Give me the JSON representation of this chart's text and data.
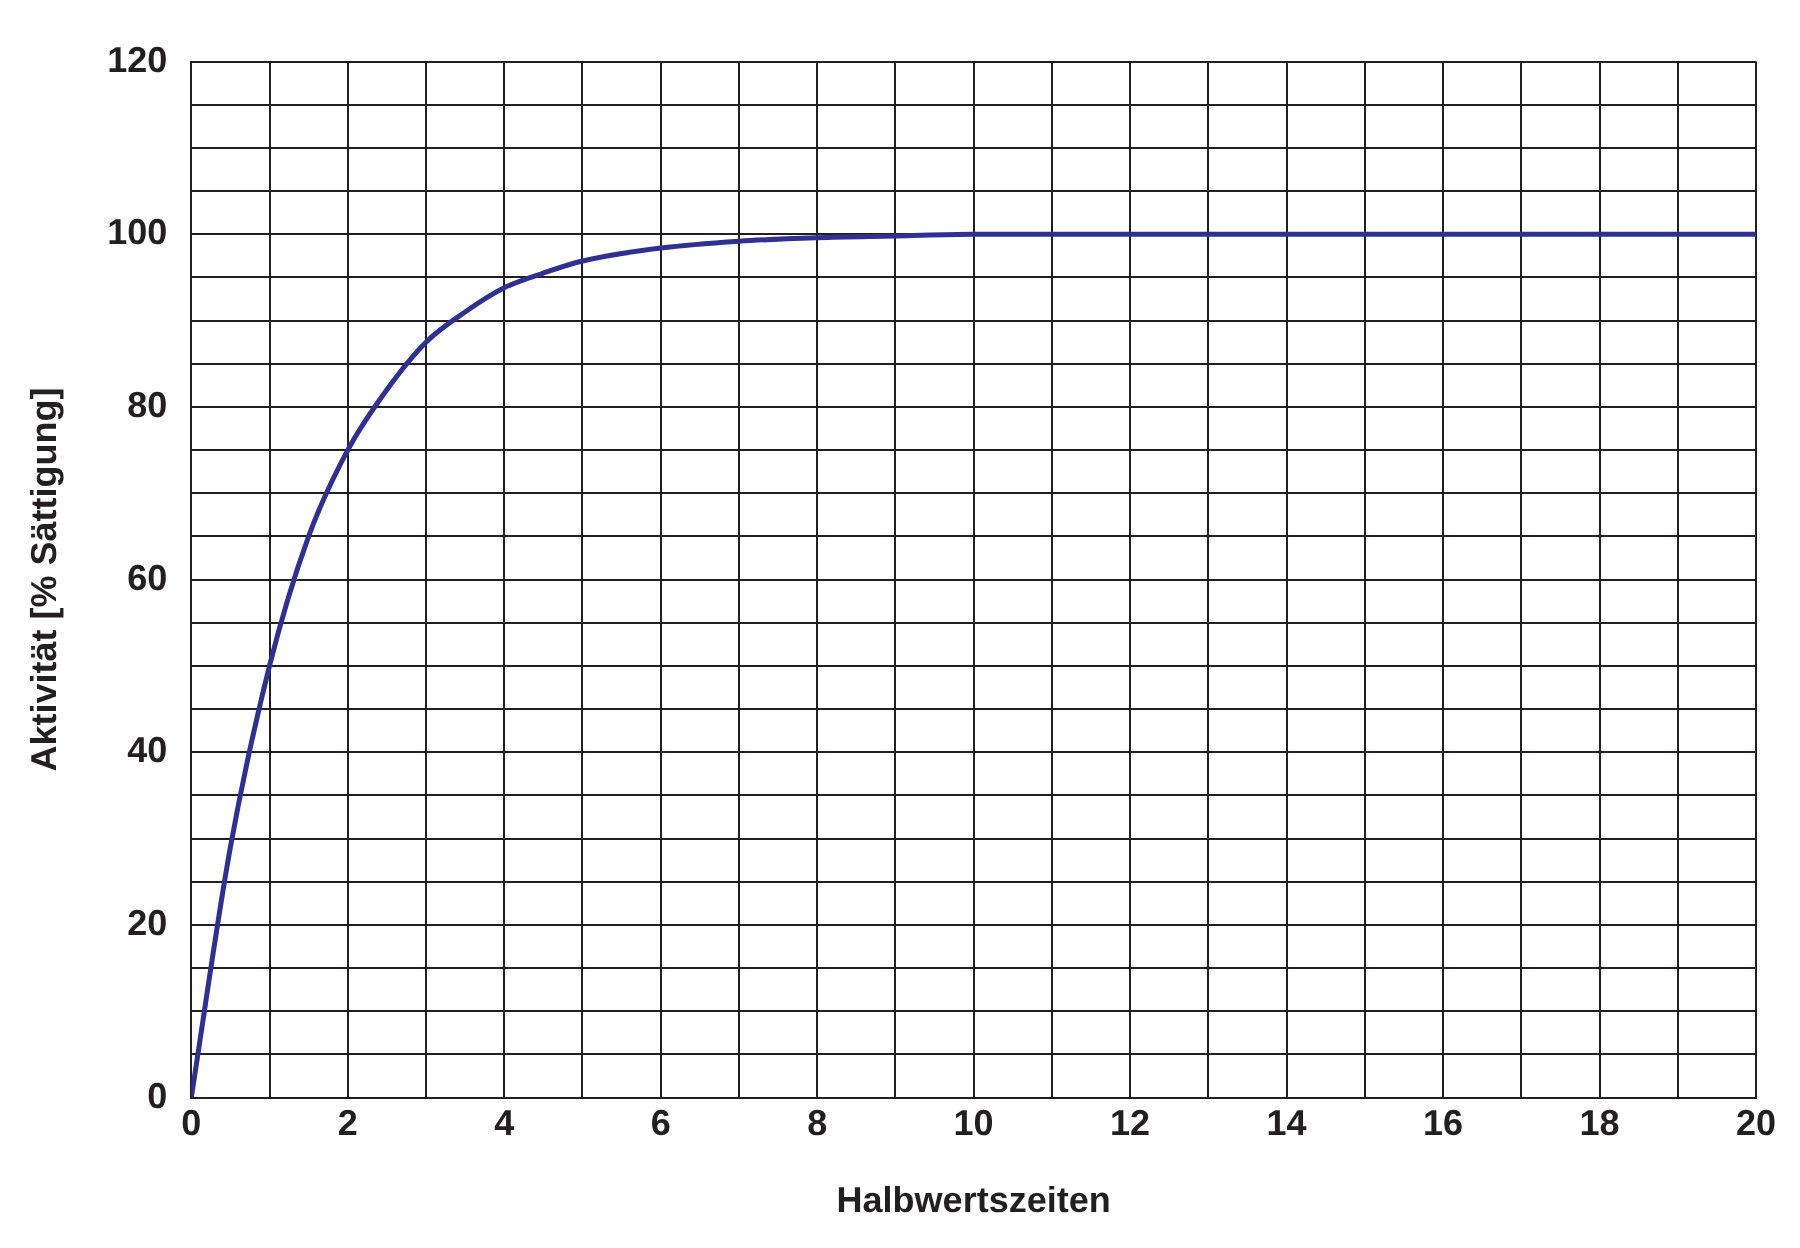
{
  "chart_data": {
    "type": "line",
    "xlabel": "Halbwertszeiten",
    "ylabel": "Aktivität [% Sättigung]",
    "x": [
      0,
      0.5,
      1,
      1.5,
      2,
      2.5,
      3,
      3.5,
      4,
      4.5,
      5,
      6,
      7,
      8,
      9,
      10,
      12,
      14,
      16,
      18,
      20
    ],
    "series": [
      {
        "color": "#2e3192",
        "values": [
          0,
          29,
          50,
          65,
          75,
          82,
          87.5,
          91,
          93.8,
          95.5,
          96.9,
          98.4,
          99.2,
          99.6,
          99.8,
          100,
          100,
          100,
          100,
          100,
          100
        ]
      }
    ],
    "xlim": [
      0,
      20
    ],
    "xticks": [
      0,
      {
        "value": 1,
        "label": null
      },
      2,
      {
        "value": 3,
        "label": null
      },
      4,
      {
        "value": 5,
        "label": null
      },
      6,
      {
        "value": 7,
        "label": null
      },
      8,
      {
        "value": 9,
        "label": null
      },
      10,
      {
        "value": 11,
        "label": null
      },
      12,
      {
        "value": 13,
        "label": null
      },
      14,
      {
        "value": 15,
        "label": null
      },
      16,
      {
        "value": 17,
        "label": null
      },
      18,
      {
        "value": 19,
        "label": null
      },
      20
    ],
    "ylim": [
      0,
      120
    ],
    "yticks": [
      0,
      {
        "value": 5,
        "label": null
      },
      {
        "value": 10,
        "label": null
      },
      {
        "value": 15,
        "label": null
      },
      20,
      {
        "value": 25,
        "label": null
      },
      {
        "value": 30,
        "label": null
      },
      {
        "value": 35,
        "label": null
      },
      40,
      {
        "value": 45,
        "label": null
      },
      {
        "value": 50,
        "label": null
      },
      {
        "value": 55,
        "label": null
      },
      60,
      {
        "value": 65,
        "label": null
      },
      {
        "value": 70,
        "label": null
      },
      {
        "value": 75,
        "label": null
      },
      80,
      {
        "value": 85,
        "label": null
      },
      {
        "value": 90,
        "label": null
      },
      {
        "value": 95,
        "label": null
      },
      100,
      {
        "value": 105,
        "label": null
      },
      {
        "value": 110,
        "label": null
      },
      {
        "value": 115,
        "label": null
      },
      120
    ],
    "grid": true,
    "legend": false,
    "marker": "none",
    "line_style": "solid"
  }
}
